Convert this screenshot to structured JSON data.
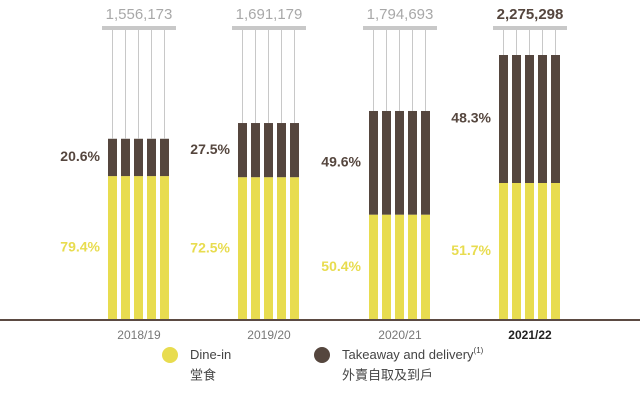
{
  "chart_data": {
    "type": "stacked_bar",
    "categories": [
      "2018/19",
      "2019/20",
      "2020/21",
      "2021/22"
    ],
    "bold_category": "2021/22",
    "totals": {
      "values": [
        1556173,
        1691179,
        1794693,
        2275298
      ],
      "value_labels": [
        "1,556,173",
        "1,691,179",
        "1,794,693",
        "2,275,298"
      ]
    },
    "series": [
      {
        "name": "Dine-in",
        "name_zh": "堂食",
        "color": "#e8dc4f",
        "values": [
          79.4,
          72.5,
          50.4,
          51.7
        ],
        "value_labels": [
          "79.4%",
          "72.5%",
          "50.4%",
          "51.7%"
        ]
      },
      {
        "name": "Takeaway and delivery",
        "superscript": "(1)",
        "name_zh": "外賣自取及到戶",
        "color": "#55463e",
        "values": [
          20.6,
          27.5,
          49.6,
          48.3
        ],
        "value_labels": [
          "20.6%",
          "27.5%",
          "49.6%",
          "48.3%"
        ]
      }
    ]
  }
}
